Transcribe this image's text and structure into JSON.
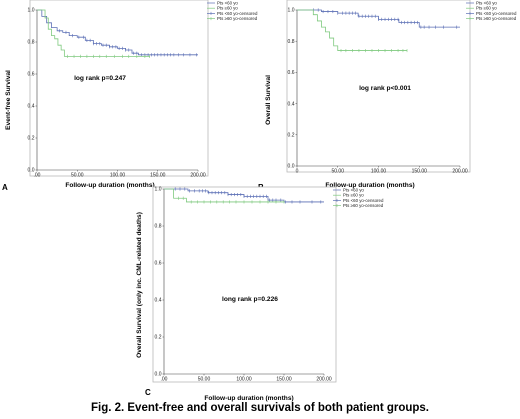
{
  "figure_caption": "Fig. 2. Event-free and overall survivals of both patient groups.",
  "colors": {
    "under60": "#5b6fb5",
    "over60": "#7fc97f",
    "frame": "#b9b9b9",
    "axis": "#444444"
  },
  "panels": [
    {
      "label": "A",
      "xlabel": "Follow-up duration (months)",
      "ylabel": "Event-free Survival",
      "annotation": "log rank p=0.247",
      "legend": [
        "Pts <60 yo",
        "Pts ≥60 yo",
        "Pts <60 yo-censored",
        "Pts ≥60 yo-censored"
      ]
    },
    {
      "label": "B",
      "xlabel": "Follow-up duration (months)",
      "ylabel": "Overall Survival",
      "annotation": "log rank p<0.001",
      "legend": [
        "Pts <60 yo",
        "Pts ≥60 yo",
        "Pts <60 yo-censored",
        "Pts ≥60 yo-censored"
      ]
    },
    {
      "label": "C",
      "xlabel": "Follow-up duration (months)",
      "ylabel": "Overall Survival (only inc. CML-related deaths)",
      "annotation": "long rank p=0.226",
      "legend": [
        "Pts <60 yo",
        "Pts ≥60 yo",
        "Pts <60 yo-censored",
        "Pts ≥60 yo-censored"
      ]
    }
  ],
  "chart_data": [
    {
      "type": "line",
      "xlim": [
        0,
        200
      ],
      "ylim": [
        0,
        1.0
      ],
      "xticks": [
        ".00",
        "50.00",
        "100.00",
        "150.00",
        "200.00"
      ],
      "yticks": [
        "0.0",
        "0.2",
        "0.4",
        "0.6",
        "0.8",
        "1.0"
      ],
      "series": [
        {
          "name": "Pts <60 yo",
          "steps": [
            [
              0,
              1.0
            ],
            [
              6,
              0.96
            ],
            [
              12,
              0.92
            ],
            [
              18,
              0.89
            ],
            [
              25,
              0.87
            ],
            [
              32,
              0.86
            ],
            [
              40,
              0.84
            ],
            [
              50,
              0.83
            ],
            [
              60,
              0.81
            ],
            [
              70,
              0.79
            ],
            [
              80,
              0.78
            ],
            [
              90,
              0.77
            ],
            [
              100,
              0.76
            ],
            [
              110,
              0.75
            ],
            [
              118,
              0.73
            ],
            [
              126,
              0.72
            ],
            [
              200,
              0.72
            ]
          ],
          "censored": [
            28,
            36,
            44,
            52,
            58,
            62,
            66,
            70,
            74,
            78,
            82,
            86,
            90,
            94,
            98,
            102,
            106,
            110,
            114,
            120,
            124,
            130,
            134,
            138,
            142,
            146,
            150,
            154,
            158,
            162,
            166,
            170,
            176,
            182,
            190,
            198
          ]
        },
        {
          "name": "Pts ≥60 yo",
          "steps": [
            [
              0,
              1.0
            ],
            [
              10,
              0.95
            ],
            [
              14,
              0.88
            ],
            [
              18,
              0.84
            ],
            [
              22,
              0.82
            ],
            [
              26,
              0.78
            ],
            [
              30,
              0.75
            ],
            [
              34,
              0.71
            ],
            [
              140,
              0.71
            ]
          ],
          "censored": [
            38,
            46,
            54,
            62,
            70,
            78,
            86,
            96,
            106,
            114,
            124,
            134,
            140
          ]
        }
      ]
    },
    {
      "type": "line",
      "xlim": [
        0,
        200
      ],
      "ylim": [
        0,
        1.0
      ],
      "xticks": [
        "0",
        "50.00",
        "100.00",
        "150.00",
        "200.00"
      ],
      "yticks": [
        "0.0",
        "0.2",
        "0.4",
        "0.6",
        "0.8",
        "1.0"
      ],
      "series": [
        {
          "name": "Pts <60 yo",
          "steps": [
            [
              0,
              1.0
            ],
            [
              30,
              0.99
            ],
            [
              50,
              0.98
            ],
            [
              75,
              0.96
            ],
            [
              100,
              0.94
            ],
            [
              125,
              0.92
            ],
            [
              150,
              0.89
            ],
            [
              200,
              0.89
            ]
          ],
          "censored": [
            20,
            26,
            32,
            38,
            44,
            50,
            56,
            60,
            64,
            68,
            72,
            76,
            80,
            84,
            88,
            92,
            96,
            100,
            104,
            108,
            112,
            116,
            120,
            124,
            128,
            132,
            136,
            140,
            144,
            148,
            152,
            156,
            162,
            170,
            180,
            196
          ]
        },
        {
          "name": "Pts ≥60 yo",
          "steps": [
            [
              0,
              1.0
            ],
            [
              20,
              0.97
            ],
            [
              25,
              0.93
            ],
            [
              30,
              0.89
            ],
            [
              35,
              0.86
            ],
            [
              40,
              0.82
            ],
            [
              45,
              0.77
            ],
            [
              50,
              0.74
            ],
            [
              135,
              0.74
            ]
          ],
          "censored": [
            54,
            60,
            68,
            76,
            84,
            92,
            100,
            108,
            116,
            124,
            130,
            135
          ]
        }
      ]
    },
    {
      "type": "line",
      "xlim": [
        0,
        200
      ],
      "ylim": [
        0,
        1.0
      ],
      "xticks": [
        ".00",
        "50.00",
        "100.00",
        "150.00",
        "200.00"
      ],
      "yticks": [
        "0.0",
        "0.2",
        "0.4",
        "0.6",
        "0.8",
        "1.0"
      ],
      "series": [
        {
          "name": "Pts <60 yo",
          "steps": [
            [
              0,
              1.0
            ],
            [
              30,
              0.99
            ],
            [
              55,
              0.98
            ],
            [
              80,
              0.97
            ],
            [
              100,
              0.96
            ],
            [
              130,
              0.94
            ],
            [
              150,
              0.93
            ],
            [
              200,
              0.93
            ]
          ],
          "censored": [
            14,
            20,
            26,
            32,
            38,
            44,
            48,
            52,
            56,
            60,
            64,
            68,
            72,
            76,
            80,
            84,
            88,
            92,
            96,
            100,
            104,
            108,
            112,
            116,
            120,
            124,
            128,
            132,
            136,
            140,
            146,
            152,
            160,
            170,
            185,
            196
          ]
        },
        {
          "name": "Pts ≥60 yo",
          "steps": [
            [
              0,
              1.0
            ],
            [
              12,
              0.95
            ],
            [
              28,
              0.93
            ],
            [
              150,
              0.93
            ]
          ],
          "censored": [
            18,
            24,
            34,
            42,
            50,
            58,
            66,
            74,
            82,
            90,
            100,
            110,
            120,
            130,
            140,
            150
          ]
        }
      ]
    }
  ]
}
